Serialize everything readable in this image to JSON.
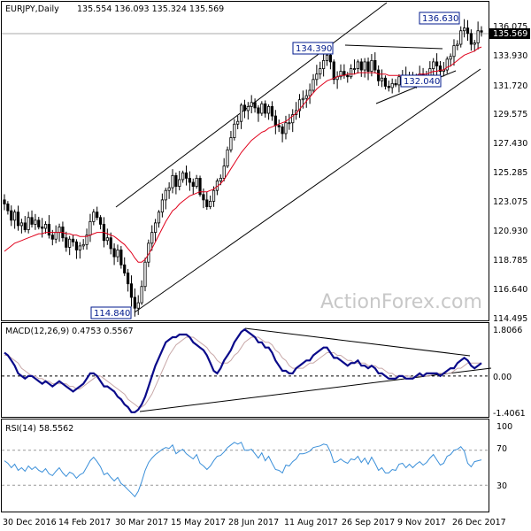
{
  "chart_data": [
    {
      "panel": "price",
      "type": "candlestick",
      "symbol_label": "EURJPY,Daily",
      "ohlc_label": "135.554 136.093 135.324 135.569",
      "y_ticks": [
        "136.075",
        "133.930",
        "131.720",
        "129.575",
        "127.430",
        "125.285",
        "123.075",
        "120.930",
        "118.785",
        "116.640",
        "114.495"
      ],
      "last_price_label": "135.569",
      "annotations": [
        "136.630",
        "134.390",
        "132.040",
        "114.840"
      ],
      "ylim": [
        114.495,
        137.0
      ],
      "close": [
        122.9,
        122.4,
        121.7,
        122.3,
        121.3,
        121.5,
        121.0,
        121.9,
        121.4,
        121.7,
        121.2,
        121.1,
        121.4,
        120.6,
        120.3,
        120.8,
        121.2,
        120.4,
        119.7,
        120.3,
        120.1,
        119.5,
        119.8,
        119.9,
        120.6,
        121.6,
        122.3,
        121.9,
        121.4,
        120.2,
        120.4,
        119.6,
        119.0,
        119.5,
        118.4,
        117.8,
        117.0,
        116.0,
        115.2,
        115.6,
        116.8,
        118.6,
        120.0,
        120.8,
        121.5,
        122.3,
        123.2,
        123.9,
        124.1,
        125.0,
        124.2,
        124.7,
        125.2,
        124.8,
        124.5,
        124.2,
        124.8,
        123.6,
        123.2,
        122.7,
        123.1,
        123.9,
        124.6,
        124.8,
        125.7,
        126.9,
        127.8,
        128.8,
        129.0,
        130.2,
        129.8,
        130.1,
        130.4,
        130.0,
        129.6,
        130.3,
        129.6,
        130.1,
        129.4,
        128.7,
        128.6,
        128.1,
        128.9,
        128.9,
        129.5,
        129.8,
        130.6,
        130.7,
        130.9,
        131.3,
        132.1,
        132.5,
        132.9,
        133.5,
        133.9,
        133.4,
        132.1,
        132.3,
        132.7,
        132.4,
        132.3,
        132.9,
        132.9,
        133.4,
        132.8,
        133.4,
        132.7,
        133.5,
        132.8,
        132.0,
        132.2,
        131.6,
        131.5,
        131.8,
        131.7,
        132.3,
        132.4,
        132.0,
        132.3,
        132.0,
        132.3,
        132.5,
        132.2,
        132.4,
        132.9,
        133.4,
        133.1,
        132.7,
        132.8,
        133.6,
        133.8,
        134.6,
        134.7,
        135.7,
        135.9,
        135.5,
        134.7,
        134.8,
        135.7,
        135.6
      ],
      "ma": [
        119.4,
        119.6,
        119.8,
        120.0,
        120.1,
        120.2,
        120.3,
        120.4,
        120.5,
        120.6,
        120.7,
        120.7,
        120.8,
        120.8,
        120.8,
        120.8,
        120.8,
        120.8,
        120.7,
        120.7,
        120.6,
        120.6,
        120.5,
        120.5,
        120.5,
        120.6,
        120.7,
        120.8,
        120.8,
        120.8,
        120.7,
        120.6,
        120.5,
        120.3,
        120.1,
        119.9,
        119.6,
        119.3,
        118.9,
        118.6,
        118.6,
        118.8,
        119.2,
        119.6,
        120.1,
        120.6,
        121.1,
        121.6,
        122.0,
        122.4,
        122.6,
        122.9,
        123.1,
        123.3,
        123.5,
        123.6,
        123.7,
        123.8,
        123.8,
        123.8,
        123.9,
        124.0,
        124.2,
        124.4,
        124.7,
        125.1,
        125.5,
        125.9,
        126.3,
        126.7,
        127.0,
        127.3,
        127.6,
        127.8,
        128.0,
        128.2,
        128.3,
        128.5,
        128.6,
        128.7,
        128.8,
        128.9,
        129.0,
        129.2,
        129.4,
        129.6,
        129.9,
        130.2,
        130.5,
        130.8,
        131.1,
        131.4,
        131.6,
        131.8,
        132.0,
        132.1,
        132.2,
        132.3,
        132.4,
        132.4,
        132.5,
        132.5,
        132.5,
        132.6,
        132.6,
        132.6,
        132.6,
        132.6,
        132.6,
        132.5,
        132.5,
        132.5,
        132.4,
        132.4,
        132.4,
        132.4,
        132.4,
        132.4,
        132.4,
        132.4,
        132.4,
        132.5,
        132.5,
        132.5,
        132.6,
        132.7,
        132.7,
        132.8,
        132.8,
        133.0,
        133.1,
        133.3,
        133.5,
        133.7,
        133.9,
        134.0,
        134.1,
        134.2,
        134.4,
        134.5
      ]
    },
    {
      "panel": "macd",
      "type": "line",
      "label": "MACD(12,26,9) 0.4753 0.5567",
      "y_ticks": [
        "1.8066",
        "0.00",
        "-1.4061"
      ],
      "ylim": [
        -1.5,
        1.9
      ],
      "series": [
        {
          "name": "MACD",
          "values": [
            0.9,
            0.8,
            0.6,
            0.4,
            0.1,
            0.0,
            -0.1,
            0.0,
            0.0,
            -0.1,
            -0.2,
            -0.3,
            -0.2,
            -0.3,
            -0.4,
            -0.3,
            -0.2,
            -0.3,
            -0.4,
            -0.5,
            -0.6,
            -0.5,
            -0.4,
            -0.3,
            -0.1,
            0.1,
            0.1,
            0.0,
            -0.2,
            -0.4,
            -0.4,
            -0.5,
            -0.6,
            -0.8,
            -0.9,
            -1.1,
            -1.2,
            -1.4,
            -1.4,
            -1.3,
            -1.1,
            -0.8,
            -0.4,
            0.0,
            0.4,
            0.7,
            1.0,
            1.3,
            1.4,
            1.5,
            1.5,
            1.6,
            1.6,
            1.6,
            1.5,
            1.3,
            1.2,
            1.1,
            1.0,
            0.8,
            0.5,
            0.2,
            0.1,
            0.3,
            0.6,
            0.8,
            1.0,
            1.3,
            1.5,
            1.7,
            1.8,
            1.7,
            1.6,
            1.5,
            1.3,
            1.3,
            1.1,
            1.1,
            0.9,
            0.6,
            0.4,
            0.2,
            0.2,
            0.1,
            0.1,
            0.3,
            0.4,
            0.5,
            0.6,
            0.6,
            0.8,
            0.9,
            1.0,
            1.1,
            1.1,
            0.9,
            0.7,
            0.7,
            0.6,
            0.5,
            0.4,
            0.5,
            0.5,
            0.6,
            0.4,
            0.4,
            0.3,
            0.4,
            0.3,
            0.1,
            0.1,
            0.0,
            -0.1,
            -0.1,
            -0.1,
            0.0,
            0.0,
            -0.1,
            -0.1,
            -0.1,
            0.0,
            0.1,
            0.0,
            0.1,
            0.1,
            0.1,
            0.1,
            0.0,
            0.1,
            0.2,
            0.3,
            0.3,
            0.5,
            0.6,
            0.7,
            0.6,
            0.4,
            0.3,
            0.4,
            0.5
          ]
        },
        {
          "name": "Signal",
          "values": [
            0.8,
            0.8,
            0.7,
            0.6,
            0.5,
            0.3,
            0.2,
            0.1,
            0.0,
            0.0,
            -0.1,
            -0.1,
            -0.2,
            -0.2,
            -0.3,
            -0.3,
            -0.3,
            -0.3,
            -0.3,
            -0.4,
            -0.4,
            -0.5,
            -0.5,
            -0.4,
            -0.3,
            -0.2,
            -0.1,
            0.0,
            0.0,
            -0.1,
            -0.2,
            -0.3,
            -0.4,
            -0.5,
            -0.6,
            -0.7,
            -0.9,
            -1.0,
            -1.1,
            -1.2,
            -1.2,
            -1.1,
            -0.9,
            -0.7,
            -0.4,
            -0.1,
            0.2,
            0.5,
            0.8,
            1.0,
            1.2,
            1.3,
            1.4,
            1.5,
            1.5,
            1.5,
            1.4,
            1.3,
            1.2,
            1.1,
            0.9,
            0.8,
            0.6,
            0.5,
            0.5,
            0.5,
            0.6,
            0.8,
            0.9,
            1.1,
            1.3,
            1.4,
            1.5,
            1.5,
            1.5,
            1.4,
            1.3,
            1.3,
            1.2,
            1.0,
            0.9,
            0.7,
            0.6,
            0.4,
            0.3,
            0.3,
            0.3,
            0.3,
            0.4,
            0.5,
            0.5,
            0.6,
            0.7,
            0.8,
            0.9,
            0.9,
            0.9,
            0.8,
            0.8,
            0.7,
            0.6,
            0.6,
            0.5,
            0.5,
            0.5,
            0.5,
            0.4,
            0.4,
            0.4,
            0.3,
            0.3,
            0.2,
            0.1,
            0.1,
            0.0,
            0.0,
            0.0,
            0.0,
            0.0,
            -0.1,
            0.0,
            0.0,
            0.0,
            0.0,
            0.0,
            0.1,
            0.1,
            0.1,
            0.1,
            0.1,
            0.1,
            0.2,
            0.3,
            0.3,
            0.4,
            0.5,
            0.5,
            0.5,
            0.5,
            0.5
          ]
        }
      ]
    },
    {
      "panel": "rsi",
      "type": "line",
      "label": "RSI(14) 58.5562",
      "y_ticks": [
        "100",
        "70",
        "50",
        "30",
        "0"
      ],
      "ylim": [
        0,
        100
      ],
      "series": [
        {
          "name": "RSI",
          "values": [
            58,
            55,
            50,
            54,
            47,
            50,
            46,
            52,
            48,
            51,
            47,
            45,
            49,
            43,
            41,
            46,
            50,
            44,
            40,
            45,
            43,
            38,
            42,
            44,
            51,
            58,
            62,
            57,
            51,
            42,
            44,
            39,
            35,
            39,
            32,
            29,
            25,
            21,
            17,
            23,
            34,
            47,
            56,
            61,
            65,
            68,
            71,
            73,
            72,
            76,
            66,
            69,
            71,
            66,
            63,
            60,
            65,
            55,
            52,
            48,
            52,
            58,
            63,
            64,
            68,
            73,
            76,
            79,
            77,
            79,
            70,
            70,
            71,
            66,
            61,
            67,
            58,
            63,
            55,
            48,
            47,
            44,
            53,
            52,
            57,
            60,
            66,
            66,
            67,
            69,
            73,
            74,
            75,
            77,
            76,
            68,
            56,
            57,
            60,
            57,
            55,
            60,
            59,
            63,
            56,
            61,
            54,
            62,
            55,
            47,
            50,
            44,
            44,
            48,
            47,
            54,
            55,
            50,
            54,
            50,
            54,
            57,
            53,
            56,
            61,
            65,
            59,
            53,
            55,
            63,
            65,
            70,
            71,
            74,
            69,
            55,
            51,
            57,
            58,
            59
          ]
        }
      ]
    },
    {
      "panel": "x-axis",
      "x_ticks": [
        "30 Dec 2016",
        "14 Feb 2017",
        "30 Mar 2017",
        "15 May 2017",
        "28 Jun 2017",
        "11 Aug 2017",
        "26 Sep 2017",
        "9 Nov 2017",
        "26 Dec 2017"
      ]
    }
  ],
  "watermark": "ActionForex.com"
}
